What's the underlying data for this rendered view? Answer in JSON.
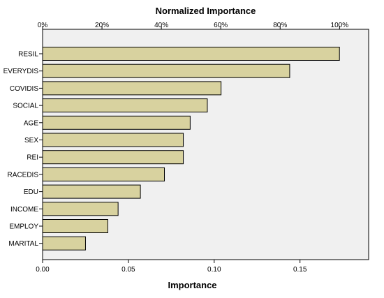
{
  "chart_data": {
    "type": "bar",
    "orientation": "horizontal",
    "title_top": "Normalized Importance",
    "xlabel": "Importance",
    "categories": [
      "RESIL",
      "EVERYDIS",
      "COVIDIS",
      "SOCIAL",
      "AGE",
      "SEX",
      "REI",
      "RACEDIS",
      "EDU",
      "INCOME",
      "EMPLOY",
      "MARITAL"
    ],
    "values": [
      0.173,
      0.144,
      0.104,
      0.096,
      0.086,
      0.082,
      0.082,
      0.071,
      0.057,
      0.044,
      0.038,
      0.025
    ],
    "xlim": [
      0,
      0.19
    ],
    "x_ticks": [
      0,
      0.05,
      0.1,
      0.15
    ],
    "x_tick_labels": [
      "0.00",
      "0.05",
      "0.10",
      "0.15"
    ],
    "top_axis_ticks": [
      0,
      20,
      40,
      60,
      80,
      100
    ],
    "top_axis_labels": [
      "0%",
      "20%",
      "40%",
      "60%",
      "80%",
      "100%"
    ],
    "top_axis_range": [
      0,
      109.8
    ],
    "grid": false,
    "colors": {
      "bar_fill": "#d8d29f",
      "bar_stroke": "#000000",
      "plot_bg": "#f0f0f0"
    }
  }
}
